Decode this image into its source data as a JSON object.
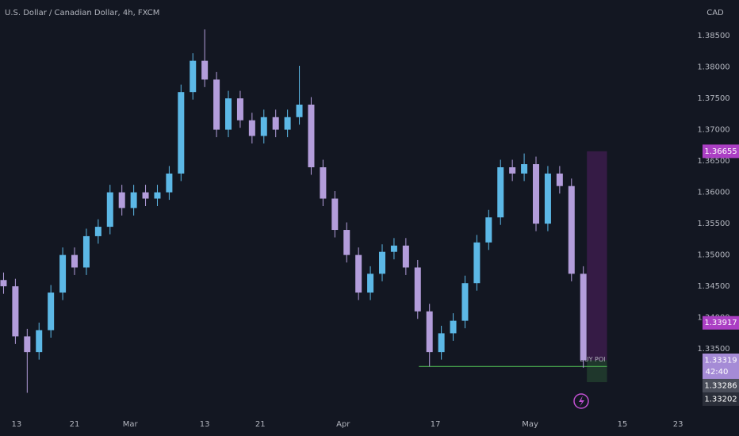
{
  "chart_data": {
    "type": "candlestick",
    "title": "U.S. Dollar / Canadian Dollar, 4h, FXCM",
    "currency": "CAD",
    "up_color": "#5cb8e6",
    "down_color": "#b39ddb",
    "open": [
      1.346,
      1.345,
      1.337,
      1.3345,
      1.338,
      1.344,
      1.35,
      1.348,
      1.353,
      1.3545,
      1.36,
      1.3575,
      1.36,
      1.359,
      1.36,
      1.363,
      1.376,
      1.381,
      1.378,
      1.37,
      1.375,
      1.3715,
      1.369,
      1.372,
      1.37,
      1.372,
      1.374,
      1.364,
      1.359,
      1.354,
      1.35,
      1.344,
      1.347,
      1.3505,
      1.3515,
      1.348,
      1.341,
      1.3345,
      1.3375,
      1.3395,
      1.3455,
      1.352,
      1.356,
      1.364,
      1.363,
      1.3645,
      1.355,
      1.363,
      1.361,
      1.347
    ],
    "high": [
      1.3472,
      1.3462,
      1.3382,
      1.3392,
      1.3452,
      1.3512,
      1.3512,
      1.3542,
      1.3557,
      1.3612,
      1.3612,
      1.3612,
      1.3612,
      1.3612,
      1.3642,
      1.3772,
      1.3822,
      1.386,
      1.3792,
      1.3762,
      1.3762,
      1.3727,
      1.3732,
      1.3732,
      1.3732,
      1.3802,
      1.3752,
      1.3652,
      1.3602,
      1.3552,
      1.3512,
      1.3482,
      1.3517,
      1.3527,
      1.3527,
      1.3492,
      1.3422,
      1.3387,
      1.3407,
      1.3467,
      1.3532,
      1.3572,
      1.3652,
      1.3652,
      1.3662,
      1.3657,
      1.3642,
      1.3642,
      1.3622,
      1.3482
    ],
    "low": [
      1.3438,
      1.3358,
      1.328,
      1.3333,
      1.3368,
      1.3428,
      1.3468,
      1.3468,
      1.3518,
      1.3533,
      1.3563,
      1.3563,
      1.3578,
      1.3578,
      1.3588,
      1.3618,
      1.3748,
      1.3768,
      1.3688,
      1.3688,
      1.3703,
      1.3678,
      1.3678,
      1.3688,
      1.3688,
      1.3708,
      1.3628,
      1.3578,
      1.3528,
      1.3488,
      1.3428,
      1.3428,
      1.3458,
      1.3493,
      1.3468,
      1.3398,
      1.3322,
      1.3333,
      1.3363,
      1.3383,
      1.3443,
      1.3508,
      1.3548,
      1.3618,
      1.3618,
      1.3538,
      1.3538,
      1.3598,
      1.3458,
      1.332
    ],
    "close": [
      1.345,
      1.337,
      1.3345,
      1.338,
      1.344,
      1.35,
      1.348,
      1.353,
      1.3545,
      1.36,
      1.3575,
      1.36,
      1.359,
      1.36,
      1.363,
      1.376,
      1.381,
      1.378,
      1.37,
      1.375,
      1.3715,
      1.369,
      1.372,
      1.37,
      1.372,
      1.374,
      1.364,
      1.359,
      1.354,
      1.35,
      1.344,
      1.347,
      1.3505,
      1.3515,
      1.348,
      1.341,
      1.3345,
      1.3375,
      1.3395,
      1.3455,
      1.352,
      1.356,
      1.364,
      1.363,
      1.3645,
      1.355,
      1.363,
      1.361,
      1.347,
      1.3332
    ],
    "xlim": [
      -0.3,
      58
    ],
    "xticks": [
      {
        "value": 1.1,
        "label": "13"
      },
      {
        "value": 6.0,
        "label": "21"
      },
      {
        "value": 10.7,
        "label": "Mar"
      },
      {
        "value": 17,
        "label": "13"
      },
      {
        "value": 21.7,
        "label": "21"
      },
      {
        "value": 28.7,
        "label": "Apr"
      },
      {
        "value": 36.5,
        "label": "17"
      },
      {
        "value": 44.5,
        "label": "May"
      },
      {
        "value": 52.3,
        "label": "15"
      },
      {
        "value": 57,
        "label": "23"
      }
    ],
    "ylim": [
      1.3249,
      1.3907
    ],
    "yticks": [
      {
        "value": 1.335,
        "label": "1.33500"
      },
      {
        "value": 1.34,
        "label": "1.34000"
      },
      {
        "value": 1.345,
        "label": "1.34500"
      },
      {
        "value": 1.35,
        "label": "1.35000"
      },
      {
        "value": 1.355,
        "label": "1.35500"
      },
      {
        "value": 1.36,
        "label": "1.36000"
      },
      {
        "value": 1.365,
        "label": "1.36500"
      },
      {
        "value": 1.37,
        "label": "1.37000"
      },
      {
        "value": 1.375,
        "label": "1.37500"
      },
      {
        "value": 1.38,
        "label": "1.38000"
      },
      {
        "value": 1.385,
        "label": "1.38500"
      }
    ],
    "position": {
      "start": 49.3,
      "end": 51.0,
      "target": 1.36655,
      "entry": 1.33319,
      "stop": 1.3297
    },
    "level": {
      "value": 1.3322,
      "start": 35.1,
      "end": 51.0,
      "label": "BUY POI",
      "color": "#4caf50"
    },
    "price_labels": [
      {
        "value": 1.36655,
        "label": "1.36655",
        "color": "#ab3fc4"
      },
      {
        "value": 1.33917,
        "label": "1.33917",
        "color": "#ab3fc4"
      },
      {
        "value": 1.33319,
        "label": "1.33319",
        "color": "#a58bd6",
        "sub": "42:40"
      },
      {
        "value": 1.33286,
        "label": "1.33286",
        "color": "#4a4e5a"
      },
      {
        "value": 1.33202,
        "label": "1.33202",
        "color": "#2a2e39"
      }
    ]
  }
}
